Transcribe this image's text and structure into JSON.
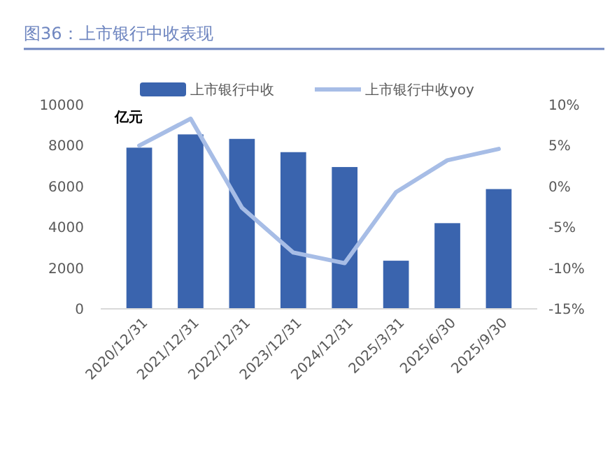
{
  "chart_data": {
    "type": "bar",
    "title": "图36：上市银行中收表现",
    "ylabel": "亿元",
    "categories": [
      "2020/12/31",
      "2021/12/31",
      "2022/12/31",
      "2023/12/31",
      "2024/12/31",
      "2025/3/31",
      "2025/6/30",
      "2025/9/30"
    ],
    "series": [
      {
        "name": "上市银行中收",
        "color": "#3a64ae",
        "values": [
          7900,
          8550,
          8330,
          7680,
          6950,
          2360,
          4200,
          5870
        ]
      },
      {
        "name": "上市银行中收yoy",
        "type": "line",
        "axis": "y2",
        "color": "#a7bde6",
        "values": [
          5.0,
          8.3,
          -2.6,
          -8.1,
          -9.4,
          -0.7,
          3.2,
          4.6
        ]
      }
    ],
    "ylim": [
      0,
      10000
    ],
    "yticks": [
      0,
      2000,
      4000,
      6000,
      8000,
      10000
    ],
    "y2lim": [
      -15,
      10
    ],
    "y2ticks": [
      {
        "value": -15,
        "label": "-15%"
      },
      {
        "value": -10,
        "label": "-10%"
      },
      {
        "value": -5,
        "label": "-5%"
      },
      {
        "value": 0,
        "label": "0%"
      },
      {
        "value": 5,
        "label": "5%"
      },
      {
        "value": 10,
        "label": "10%"
      }
    ],
    "legend": "top",
    "grid": false
  }
}
